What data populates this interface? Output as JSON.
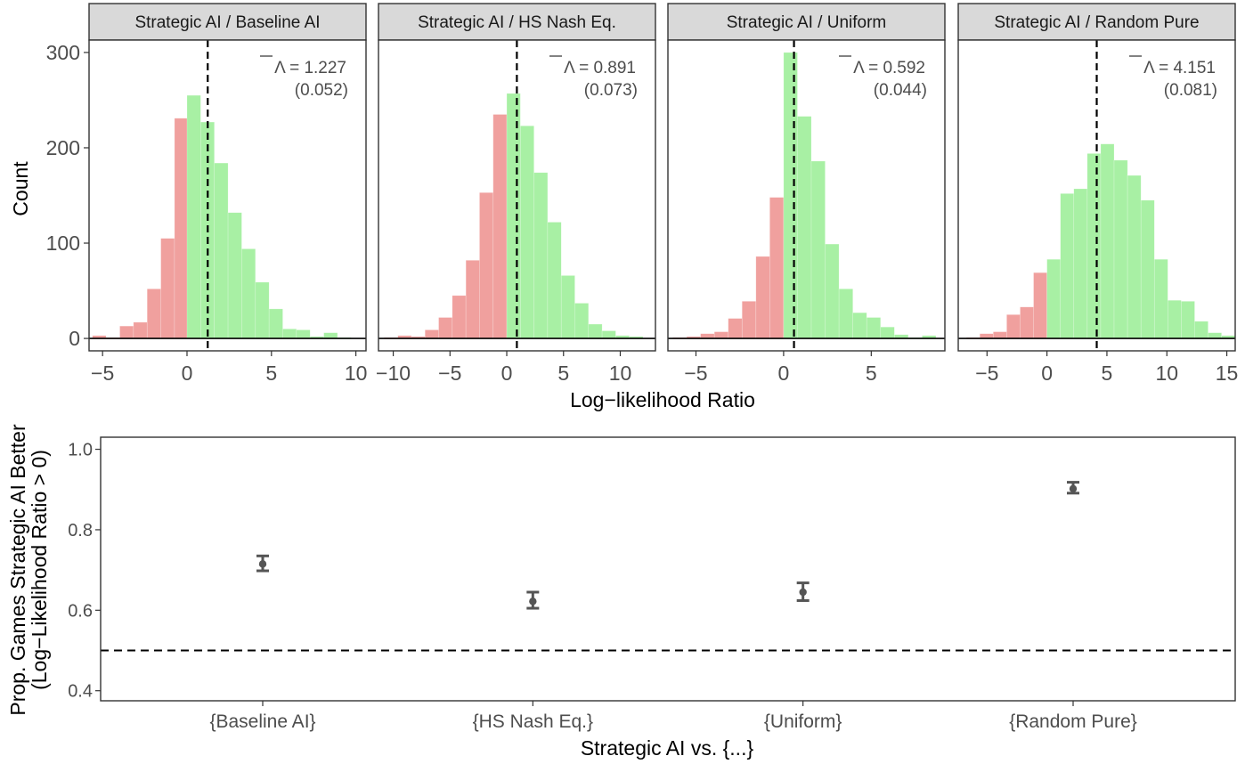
{
  "chart_data": [
    {
      "type": "histogram",
      "panel": "Strategic AI / Baseline AI",
      "title": "Strategic AI / Baseline AI",
      "xlim": [
        -5.8,
        10.6
      ],
      "xticks": [
        -5,
        0,
        5,
        10
      ],
      "ylim": [
        -13,
        313
      ],
      "yticks": [
        0,
        100,
        200,
        300
      ],
      "binwidth": 0.81,
      "bins": [
        {
          "x0": -5.6,
          "count": 3
        },
        {
          "x0": -4.79,
          "count": 1
        },
        {
          "x0": -3.98,
          "count": 13
        },
        {
          "x0": -3.17,
          "count": 17
        },
        {
          "x0": -2.36,
          "count": 52
        },
        {
          "x0": -1.55,
          "count": 105
        },
        {
          "x0": -0.74,
          "count": 231
        },
        {
          "x0": 0.0,
          "count": 255
        },
        {
          "x0": 0.81,
          "count": 227
        },
        {
          "x0": 1.62,
          "count": 184
        },
        {
          "x0": 2.43,
          "count": 132
        },
        {
          "x0": 3.24,
          "count": 94
        },
        {
          "x0": 4.05,
          "count": 59
        },
        {
          "x0": 4.86,
          "count": 31
        },
        {
          "x0": 5.67,
          "count": 10
        },
        {
          "x0": 6.48,
          "count": 9
        },
        {
          "x0": 7.29,
          "count": 2
        },
        {
          "x0": 8.1,
          "count": 6
        },
        {
          "x0": 8.91,
          "count": 1
        }
      ],
      "mean_line_x": 1.227,
      "annotation_value": "1.227",
      "annotation_se": "(0.052)"
    },
    {
      "type": "histogram",
      "panel": "Strategic AI / HS Nash Eq.",
      "title": "Strategic AI / HS Nash Eq.",
      "xlim": [
        -11.3,
        13.1
      ],
      "xticks": [
        -10,
        -5,
        0,
        5,
        10
      ],
      "ylim": [
        -13,
        313
      ],
      "yticks": [
        0,
        100,
        200,
        300
      ],
      "binwidth": 1.2,
      "bins": [
        {
          "x0": -10.8,
          "count": 1
        },
        {
          "x0": -9.6,
          "count": 3
        },
        {
          "x0": -8.4,
          "count": 2
        },
        {
          "x0": -7.2,
          "count": 9
        },
        {
          "x0": -6.0,
          "count": 22
        },
        {
          "x0": -4.8,
          "count": 45
        },
        {
          "x0": -3.6,
          "count": 82
        },
        {
          "x0": -2.4,
          "count": 153
        },
        {
          "x0": -1.2,
          "count": 235
        },
        {
          "x0": 0.0,
          "count": 257
        },
        {
          "x0": 1.2,
          "count": 223
        },
        {
          "x0": 2.4,
          "count": 174
        },
        {
          "x0": 3.6,
          "count": 122
        },
        {
          "x0": 4.8,
          "count": 66
        },
        {
          "x0": 6.0,
          "count": 37
        },
        {
          "x0": 7.2,
          "count": 15
        },
        {
          "x0": 8.4,
          "count": 8
        },
        {
          "x0": 9.6,
          "count": 3
        },
        {
          "x0": 10.8,
          "count": 2
        }
      ],
      "mean_line_x": 0.891,
      "annotation_value": "0.891",
      "annotation_se": "(0.073)"
    },
    {
      "type": "histogram",
      "panel": "Strategic AI / Uniform",
      "title": "Strategic AI / Uniform",
      "xlim": [
        -6.6,
        9.2
      ],
      "xticks": [
        -5,
        0,
        5
      ],
      "ylim": [
        -13,
        313
      ],
      "yticks": [
        0,
        100,
        200,
        300
      ],
      "binwidth": 0.79,
      "bins": [
        {
          "x0": -6.32,
          "count": 1
        },
        {
          "x0": -5.53,
          "count": 2
        },
        {
          "x0": -4.74,
          "count": 5
        },
        {
          "x0": -3.95,
          "count": 7
        },
        {
          "x0": -3.16,
          "count": 21
        },
        {
          "x0": -2.37,
          "count": 39
        },
        {
          "x0": -1.58,
          "count": 86
        },
        {
          "x0": -0.79,
          "count": 148
        },
        {
          "x0": 0.0,
          "count": 300
        },
        {
          "x0": 0.79,
          "count": 233
        },
        {
          "x0": 1.58,
          "count": 186
        },
        {
          "x0": 2.37,
          "count": 99
        },
        {
          "x0": 3.16,
          "count": 52
        },
        {
          "x0": 3.95,
          "count": 27
        },
        {
          "x0": 4.74,
          "count": 22
        },
        {
          "x0": 5.53,
          "count": 12
        },
        {
          "x0": 6.32,
          "count": 4
        },
        {
          "x0": 7.11,
          "count": 1
        },
        {
          "x0": 7.9,
          "count": 3
        }
      ],
      "mean_line_x": 0.592,
      "annotation_value": "0.592",
      "annotation_se": "(0.044)"
    },
    {
      "type": "histogram",
      "panel": "Strategic AI / Random Pure",
      "title": "Strategic AI / Random Pure",
      "xlim": [
        -7.4,
        15.7
      ],
      "xticks": [
        -5,
        0,
        5,
        10,
        15
      ],
      "ylim": [
        -13,
        313
      ],
      "yticks": [
        0,
        100,
        200,
        300
      ],
      "binwidth": 1.12,
      "bins": [
        {
          "x0": -6.72,
          "count": 1
        },
        {
          "x0": -5.6,
          "count": 5
        },
        {
          "x0": -4.48,
          "count": 7
        },
        {
          "x0": -3.36,
          "count": 25
        },
        {
          "x0": -2.24,
          "count": 33
        },
        {
          "x0": -1.12,
          "count": 69
        },
        {
          "x0": 0.0,
          "count": 83
        },
        {
          "x0": 1.12,
          "count": 152
        },
        {
          "x0": 2.24,
          "count": 157
        },
        {
          "x0": 3.36,
          "count": 194
        },
        {
          "x0": 4.48,
          "count": 204
        },
        {
          "x0": 5.6,
          "count": 187
        },
        {
          "x0": 6.72,
          "count": 171
        },
        {
          "x0": 7.84,
          "count": 145
        },
        {
          "x0": 8.96,
          "count": 83
        },
        {
          "x0": 10.08,
          "count": 40
        },
        {
          "x0": 11.2,
          "count": 39
        },
        {
          "x0": 12.32,
          "count": 18
        },
        {
          "x0": 13.44,
          "count": 6
        },
        {
          "x0": 14.56,
          "count": 3
        }
      ],
      "mean_line_x": 4.151,
      "annotation_value": "4.151",
      "annotation_se": "(0.081)"
    },
    {
      "type": "errorbar",
      "title": "",
      "categories": [
        "{Baseline AI}",
        "{HS Nash Eq.}",
        "{Uniform}",
        "{Random Pure}"
      ],
      "values": [
        0.715,
        0.622,
        0.645,
        0.902
      ],
      "lower": [
        0.698,
        0.605,
        0.624,
        0.891
      ],
      "upper": [
        0.735,
        0.645,
        0.668,
        0.918
      ],
      "reference_line": 0.5,
      "ylim": [
        0.375,
        1.03
      ],
      "yticks": [
        0.4,
        0.6,
        0.8,
        1.0
      ],
      "ytick_labels": [
        "0.4",
        "0.6",
        "0.8",
        "1.0"
      ]
    }
  ],
  "labels": {
    "top_ylabel": "Count",
    "top_xlabel": "Log−likelihood Ratio",
    "bottom_ylabel_line1": "Prop. Games Strategic AI Better",
    "bottom_ylabel_line2": "(Log−Likelihood Ratio > 0)",
    "bottom_xlabel": "Strategic AI vs. {...}",
    "lambda_symbol": "Λ",
    "equals": " = "
  },
  "colors": {
    "negative_fill": "#f0a09e",
    "positive_fill": "#a8f0a4",
    "strip_fill": "#d9d9d9",
    "point": "#555555",
    "text": "#4d4d4d"
  }
}
